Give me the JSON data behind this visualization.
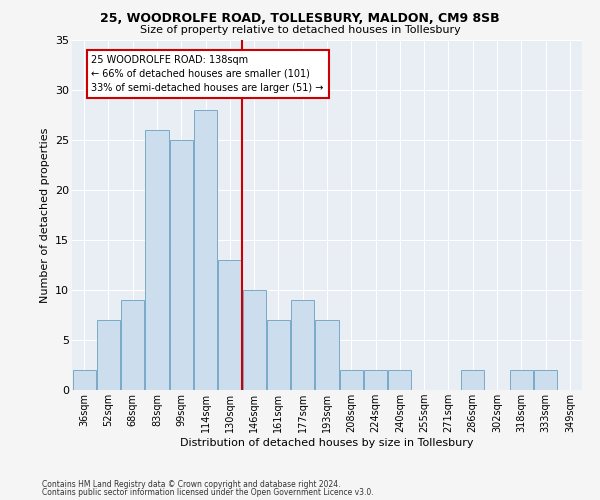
{
  "title_line1": "25, WOODROLFE ROAD, TOLLESBURY, MALDON, CM9 8SB",
  "title_line2": "Size of property relative to detached houses in Tollesbury",
  "xlabel": "Distribution of detached houses by size in Tollesbury",
  "ylabel": "Number of detached properties",
  "categories": [
    "36sqm",
    "52sqm",
    "68sqm",
    "83sqm",
    "99sqm",
    "114sqm",
    "130sqm",
    "146sqm",
    "161sqm",
    "177sqm",
    "193sqm",
    "208sqm",
    "224sqm",
    "240sqm",
    "255sqm",
    "271sqm",
    "286sqm",
    "302sqm",
    "318sqm",
    "333sqm",
    "349sqm"
  ],
  "values": [
    2,
    7,
    9,
    26,
    25,
    28,
    13,
    10,
    7,
    9,
    7,
    2,
    2,
    2,
    0,
    0,
    2,
    0,
    2,
    2,
    0
  ],
  "bar_color": "#ccdded",
  "bar_edge_color": "#7aaac8",
  "vline_x_index": 6.5,
  "annotation_text": "25 WOODROLFE ROAD: 138sqm\n← 66% of detached houses are smaller (101)\n33% of semi-detached houses are larger (51) →",
  "annotation_box_color": "#ffffff",
  "annotation_border_color": "#cc0000",
  "vline_color": "#cc0000",
  "ylim": [
    0,
    35
  ],
  "yticks": [
    0,
    5,
    10,
    15,
    20,
    25,
    30,
    35
  ],
  "fig_bg_color": "#f5f5f5",
  "plot_bg_color": "#e8eef4",
  "grid_color": "#ffffff",
  "footnote_line1": "Contains HM Land Registry data © Crown copyright and database right 2024.",
  "footnote_line2": "Contains public sector information licensed under the Open Government Licence v3.0."
}
